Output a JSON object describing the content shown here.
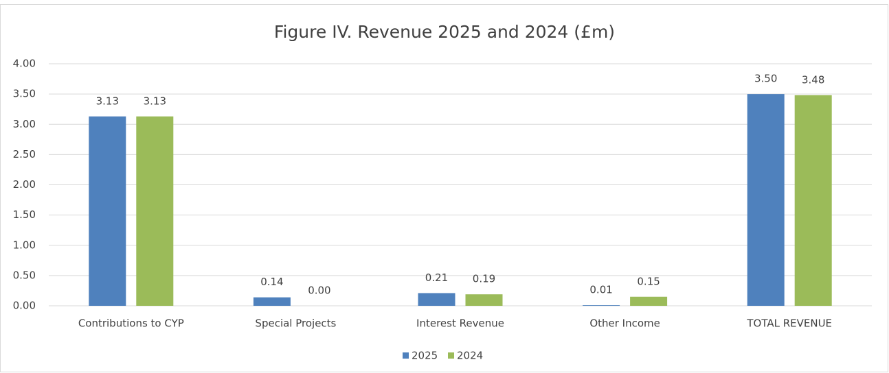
{
  "chart_data": {
    "type": "bar",
    "title": "Figure IV. Revenue 2025 and 2024 (£m)",
    "categories": [
      "Contributions to CYP",
      "Special Projects",
      "Interest Revenue",
      "Other Income",
      "TOTAL REVENUE"
    ],
    "series": [
      {
        "name": "2025",
        "color": "#4f81bd",
        "values": [
          3.13,
          0.14,
          0.21,
          0.01,
          3.5
        ],
        "value_labels": [
          "3.13",
          "0.14",
          "0.21",
          "0.01",
          "3.50"
        ]
      },
      {
        "name": "2024",
        "color": "#9bbb59",
        "values": [
          3.13,
          0,
          0.19,
          0.15,
          3.48
        ],
        "value_labels": [
          "3.13",
          "0.00",
          "0.19",
          "0.15",
          "3.48"
        ]
      }
    ],
    "ylim": [
      0,
      4
    ],
    "yticks": [
      {
        "value": 0,
        "label": "0.00"
      },
      {
        "value": 0.5,
        "label": "0.50"
      },
      {
        "value": 1,
        "label": "1.00"
      },
      {
        "value": 1.5,
        "label": "1.50"
      },
      {
        "value": 2,
        "label": "2.00"
      },
      {
        "value": 2.5,
        "label": "2.50"
      },
      {
        "value": 3,
        "label": "3.00"
      },
      {
        "value": 3.5,
        "label": "3.50"
      },
      {
        "value": 4,
        "label": "4.00"
      }
    ],
    "grid": true,
    "legend": "bottom"
  }
}
